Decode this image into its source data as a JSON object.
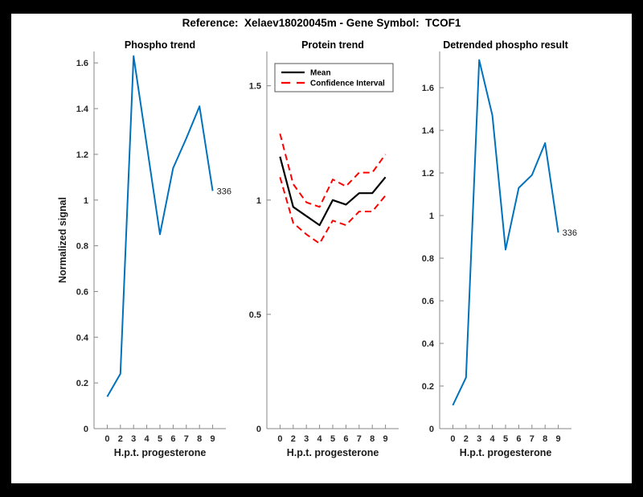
{
  "figure": {
    "title": "Reference:  Xelaev18020045m - Gene Symbol:  TCOF1",
    "background_color": "#ffffff",
    "frame_color": "#000000"
  },
  "colors": {
    "line_blue": "#0072BD",
    "ci_red": "#ff0000",
    "mean_black": "#000000",
    "axis_line": "#878787",
    "tick_text": "#262626"
  },
  "chart_data": [
    {
      "type": "line",
      "title": "Phospho trend",
      "xlabel": "H.p.t. progesterone",
      "ylabel": "Normalized signal",
      "categories": [
        "0",
        "2",
        "3",
        "4",
        "5",
        "6",
        "7",
        "8",
        "9"
      ],
      "yticks": [
        0,
        0.2,
        0.4,
        0.6,
        0.8,
        1,
        1.2,
        1.4,
        1.6
      ],
      "ylim": [
        0,
        1.65
      ],
      "grid": false,
      "legend": null,
      "series": [
        {
          "name": "Phospho trend",
          "color": "#0072BD",
          "style": "solid",
          "width": 2,
          "values": [
            0.14,
            0.24,
            1.63,
            1.24,
            0.85,
            1.14,
            1.27,
            1.41,
            1.04
          ]
        }
      ],
      "end_label": "336"
    },
    {
      "type": "line",
      "title": "Protein trend",
      "xlabel": "H.p.t. progesterone",
      "ylabel": "",
      "categories": [
        "0",
        "2",
        "3",
        "4",
        "5",
        "6",
        "7",
        "8",
        "9"
      ],
      "yticks": [
        0,
        0.5,
        1,
        1.5
      ],
      "ylim": [
        0,
        1.65
      ],
      "grid": false,
      "legend": {
        "position": "northeast",
        "entries": [
          {
            "label": "Mean",
            "color": "#000000",
            "style": "solid"
          },
          {
            "label": "Confidence Interval",
            "color": "#ff0000",
            "style": "dashed"
          }
        ]
      },
      "series": [
        {
          "name": "Mean",
          "color": "#000000",
          "style": "solid",
          "width": 2.2,
          "values": [
            1.19,
            0.97,
            0.93,
            0.89,
            1.0,
            0.98,
            1.03,
            1.03,
            1.1
          ]
        },
        {
          "name": "Confidence Interval",
          "color": "#ff0000",
          "style": "dashed",
          "width": 2,
          "values_upper": [
            1.29,
            1.07,
            0.99,
            0.97,
            1.09,
            1.06,
            1.12,
            1.12,
            1.2
          ],
          "values_lower": [
            1.1,
            0.9,
            0.85,
            0.81,
            0.91,
            0.89,
            0.95,
            0.95,
            1.02
          ]
        }
      ],
      "end_label": null
    },
    {
      "type": "line",
      "title": "Detrended phospho result",
      "xlabel": "H.p.t. progesterone",
      "ylabel": "",
      "categories": [
        "0",
        "2",
        "3",
        "4",
        "5",
        "6",
        "7",
        "8",
        "9"
      ],
      "yticks": [
        0,
        0.2,
        0.4,
        0.6,
        0.8,
        1,
        1.2,
        1.4,
        1.6
      ],
      "ylim": [
        0,
        1.77
      ],
      "grid": false,
      "legend": null,
      "series": [
        {
          "name": "Detrended phospho",
          "color": "#0072BD",
          "style": "solid",
          "width": 2,
          "values": [
            0.11,
            0.24,
            1.73,
            1.47,
            0.84,
            1.13,
            1.19,
            1.34,
            0.92
          ]
        }
      ],
      "end_label": "336"
    }
  ]
}
